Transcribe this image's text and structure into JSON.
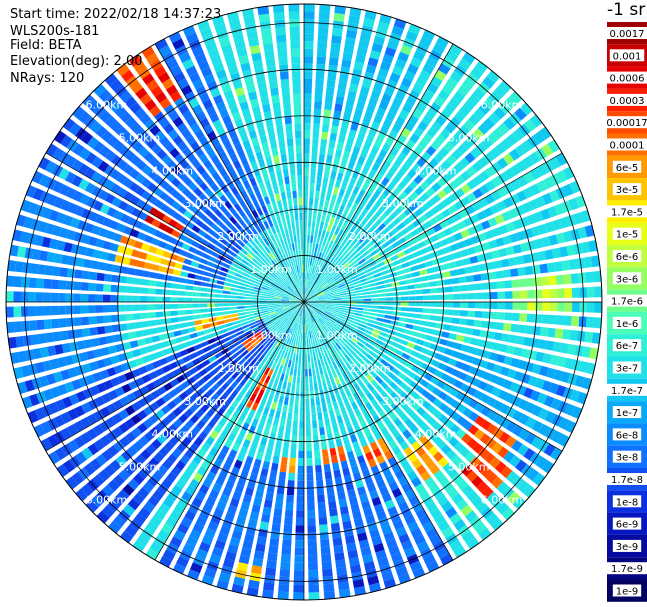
{
  "header": {
    "start_time": "Start time: 2022/02/18 14:37:23",
    "instrument": "WLS200s-181",
    "field": "Field: BETA",
    "elevation": "Elevation(deg): 2.00",
    "nrays": "NRays: 120"
  },
  "colorbar": {
    "title": "-1 sr",
    "labels": [
      "0.0017",
      "0.001",
      "0.0006",
      "0.0003",
      "0.00017",
      "0.0001",
      "6e-5",
      "3e-5",
      "1.7e-5",
      "1e-5",
      "6e-6",
      "3e-6",
      "1.7e-6",
      "1e-6",
      "6e-7",
      "3e-7",
      "1.7e-7",
      "1e-7",
      "6e-8",
      "3e-8",
      "1.7e-8",
      "1e-8",
      "6e-9",
      "3e-9",
      "1.7e-9",
      "1e-9"
    ],
    "colors": [
      "#a00000",
      "#c80000",
      "#e60000",
      "#ff1e00",
      "#ff4a00",
      "#ff7000",
      "#ff9a00",
      "#ffc400",
      "#ffee00",
      "#e8ff1a",
      "#c0ff3d",
      "#96ff60",
      "#6cff8a",
      "#4cffb8",
      "#30f0d8",
      "#20e0e8",
      "#10c8f0",
      "#08aaf8",
      "#0a8cff",
      "#1070ff",
      "#1050f0",
      "#0a30e0",
      "#0818c0",
      "#050aa0",
      "#030680",
      "#020360"
    ]
  },
  "range_labels": [
    "1.00km",
    "2.00km",
    "3.00km",
    "4.00km",
    "5.00km",
    "6.00km"
  ],
  "chart_data": {
    "type": "heatmap",
    "title": "",
    "field": "BETA",
    "units": "sr-1",
    "projection": "polar PPI",
    "elevation_deg": 2.0,
    "n_rays": 120,
    "range_rings_km": [
      1,
      2,
      3,
      4,
      5,
      6
    ],
    "max_range_km": 6.4,
    "scale": "log",
    "color_range": [
      1e-09,
      0.0017
    ],
    "background_level": "3e-7",
    "zones": [
      {
        "azimuth_deg": [
          0,
          30
        ],
        "range_km": [
          4.0,
          6.4
        ],
        "level": "1.7e-7"
      },
      {
        "azimuth_deg": [
          105,
          130
        ],
        "range_km": [
          3.0,
          6.4
        ],
        "level": "1e-7"
      },
      {
        "azimuth_deg": [
          150,
          210
        ],
        "range_km": [
          3.5,
          6.4
        ],
        "level": "3e-8"
      },
      {
        "azimuth_deg": [
          215,
          250
        ],
        "range_km": [
          1.0,
          6.4
        ],
        "level": "1.7e-8"
      },
      {
        "azimuth_deg": [
          280,
          340
        ],
        "range_km": [
          1.8,
          6.4
        ],
        "level": "3e-8"
      },
      {
        "azimuth_deg": [
          250,
          290
        ],
        "range_km": [
          4.0,
          6.4
        ],
        "level": "6e-8"
      }
    ],
    "high_returns": [
      {
        "azimuth_deg": 127,
        "range_km": [
          4.5,
          5.4
        ],
        "level": "0.0003"
      },
      {
        "azimuth_deg": 133,
        "range_km": [
          5.0,
          5.8
        ],
        "level": "0.0006"
      },
      {
        "azimuth_deg": 142,
        "range_km": [
          3.8,
          4.6
        ],
        "level": "0.0001"
      },
      {
        "azimuth_deg": 155,
        "range_km": [
          3.4,
          3.9
        ],
        "level": "0.0003"
      },
      {
        "azimuth_deg": 170,
        "range_km": [
          3.2,
          3.5
        ],
        "level": "0.0006"
      },
      {
        "azimuth_deg": 186,
        "range_km": [
          3.3,
          3.6
        ],
        "level": "0.0001"
      },
      {
        "azimuth_deg": 192,
        "range_km": [
          5.7,
          6.1
        ],
        "level": "0.0001"
      },
      {
        "azimuth_deg": 207,
        "range_km": [
          1.6,
          2.6
        ],
        "level": "0.0006"
      },
      {
        "azimuth_deg": 232,
        "range_km": [
          1.2,
          1.6
        ],
        "level": "0.0003"
      },
      {
        "azimuth_deg": 258,
        "range_km": [
          1.5,
          2.4
        ],
        "level": "0.0001"
      },
      {
        "azimuth_deg": 287,
        "range_km": [
          2.8,
          4.2
        ],
        "level": "0.0001"
      },
      {
        "azimuth_deg": 300,
        "range_km": [
          3.0,
          3.8
        ],
        "level": "0.001"
      },
      {
        "azimuth_deg": 325,
        "range_km": [
          5.2,
          6.4
        ],
        "level": "0.0006"
      },
      {
        "azimuth_deg": 88,
        "range_km": [
          4.5,
          5.8
        ],
        "level": "1e-5"
      }
    ]
  }
}
